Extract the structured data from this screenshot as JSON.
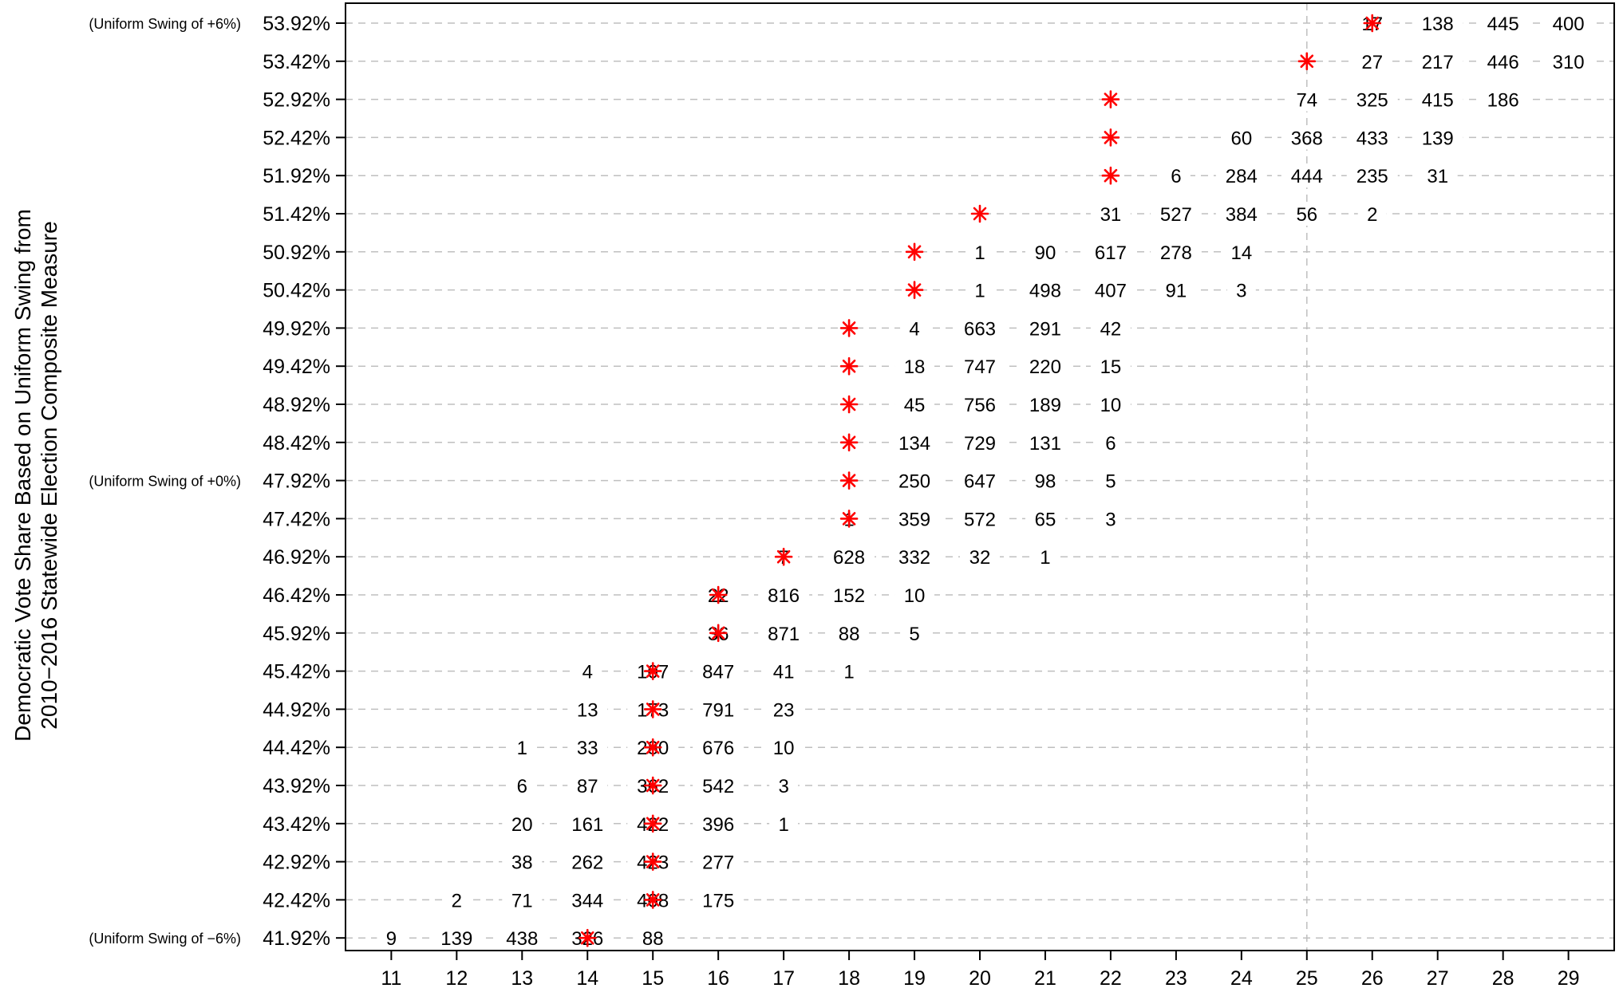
{
  "chart_data": {
    "type": "table",
    "title": "",
    "ylabel_lines": [
      "Democratic Vote Share Based on Uniform Swing from",
      "2010−2016 Statewide Election Composite Measure"
    ],
    "xlabel": "",
    "x_ticks": [
      11,
      12,
      13,
      14,
      15,
      16,
      17,
      18,
      19,
      20,
      21,
      22,
      23,
      24,
      25,
      26,
      27,
      28,
      29
    ],
    "xlim": [
      10.3,
      29.7
    ],
    "vertical_line_x": 25,
    "grid": "horizontal dashed",
    "marker_color": "#ff0000",
    "marker_color_black": "#000000",
    "rows": [
      {
        "label": "53.92%",
        "note": "(Uniform Swing of +6%)",
        "marker": 26,
        "marker_color": "red",
        "cells": [
          {
            "x": 26,
            "n": "17"
          },
          {
            "x": 27,
            "n": "138"
          },
          {
            "x": 28,
            "n": "445"
          },
          {
            "x": 29,
            "n": "400"
          }
        ]
      },
      {
        "label": "53.42%",
        "note": "",
        "marker": 25,
        "marker_color": "red",
        "cells": [
          {
            "x": 26,
            "n": "27"
          },
          {
            "x": 27,
            "n": "217"
          },
          {
            "x": 28,
            "n": "446"
          },
          {
            "x": 29,
            "n": "310"
          }
        ]
      },
      {
        "label": "52.92%",
        "note": "",
        "marker": 22,
        "marker_color": "red",
        "cells": [
          {
            "x": 25,
            "n": "74"
          },
          {
            "x": 26,
            "n": "325"
          },
          {
            "x": 27,
            "n": "415"
          },
          {
            "x": 28,
            "n": "186"
          }
        ]
      },
      {
        "label": "52.42%",
        "note": "",
        "marker": 22,
        "marker_color": "red",
        "cells": [
          {
            "x": 24,
            "n": "60"
          },
          {
            "x": 25,
            "n": "368"
          },
          {
            "x": 26,
            "n": "433"
          },
          {
            "x": 27,
            "n": "139"
          }
        ]
      },
      {
        "label": "51.92%",
        "note": "",
        "marker": 22,
        "marker_color": "red",
        "cells": [
          {
            "x": 23,
            "n": "6"
          },
          {
            "x": 24,
            "n": "284"
          },
          {
            "x": 25,
            "n": "444"
          },
          {
            "x": 26,
            "n": "235"
          },
          {
            "x": 27,
            "n": "31"
          }
        ]
      },
      {
        "label": "51.42%",
        "note": "",
        "marker": 20,
        "marker_color": "red",
        "cells": [
          {
            "x": 22,
            "n": "31"
          },
          {
            "x": 23,
            "n": "527"
          },
          {
            "x": 24,
            "n": "384"
          },
          {
            "x": 25,
            "n": "56"
          },
          {
            "x": 26,
            "n": "2"
          }
        ]
      },
      {
        "label": "50.92%",
        "note": "",
        "marker": 19,
        "marker_color": "red",
        "cells": [
          {
            "x": 20,
            "n": "1"
          },
          {
            "x": 21,
            "n": "90"
          },
          {
            "x": 22,
            "n": "617"
          },
          {
            "x": 23,
            "n": "278"
          },
          {
            "x": 24,
            "n": "14"
          }
        ]
      },
      {
        "label": "50.42%",
        "note": "",
        "marker": 19,
        "marker_color": "red",
        "cells": [
          {
            "x": 20,
            "n": "1"
          },
          {
            "x": 21,
            "n": "498"
          },
          {
            "x": 22,
            "n": "407"
          },
          {
            "x": 23,
            "n": "91"
          },
          {
            "x": 24,
            "n": "3"
          }
        ]
      },
      {
        "label": "49.92%",
        "note": "",
        "marker": 18,
        "marker_color": "red",
        "cells": [
          {
            "x": 19,
            "n": "4"
          },
          {
            "x": 20,
            "n": "663"
          },
          {
            "x": 21,
            "n": "291"
          },
          {
            "x": 22,
            "n": "42"
          }
        ]
      },
      {
        "label": "49.42%",
        "note": "",
        "marker": 18,
        "marker_color": "red",
        "cells": [
          {
            "x": 19,
            "n": "18"
          },
          {
            "x": 20,
            "n": "747"
          },
          {
            "x": 21,
            "n": "220"
          },
          {
            "x": 22,
            "n": "15"
          }
        ]
      },
      {
        "label": "48.92%",
        "note": "",
        "marker": 18,
        "marker_color": "red",
        "cells": [
          {
            "x": 19,
            "n": "45"
          },
          {
            "x": 20,
            "n": "756"
          },
          {
            "x": 21,
            "n": "189"
          },
          {
            "x": 22,
            "n": "10"
          }
        ]
      },
      {
        "label": "48.42%",
        "note": "",
        "marker": 18,
        "marker_color": "red",
        "cells": [
          {
            "x": 19,
            "n": "134"
          },
          {
            "x": 20,
            "n": "729"
          },
          {
            "x": 21,
            "n": "131"
          },
          {
            "x": 22,
            "n": "6"
          }
        ]
      },
      {
        "label": "47.92%",
        "note": "(Uniform Swing of +0%)",
        "marker": 18,
        "marker_color": "red",
        "cells": [
          {
            "x": 19,
            "n": "250"
          },
          {
            "x": 20,
            "n": "647"
          },
          {
            "x": 21,
            "n": "98"
          },
          {
            "x": 22,
            "n": "5"
          }
        ]
      },
      {
        "label": "47.42%",
        "note": "",
        "marker": 18,
        "marker_color": "red",
        "cells": [
          {
            "x": 18,
            "n": "1"
          },
          {
            "x": 19,
            "n": "359"
          },
          {
            "x": 20,
            "n": "572"
          },
          {
            "x": 21,
            "n": "65"
          },
          {
            "x": 22,
            "n": "3"
          }
        ]
      },
      {
        "label": "46.92%",
        "note": "",
        "marker": 17,
        "marker_color": "red",
        "cells": [
          {
            "x": 17,
            "n": "7"
          },
          {
            "x": 18,
            "n": "628"
          },
          {
            "x": 19,
            "n": "332"
          },
          {
            "x": 20,
            "n": "32"
          },
          {
            "x": 21,
            "n": "1"
          }
        ]
      },
      {
        "label": "46.42%",
        "note": "",
        "marker": 16,
        "marker_color": "red",
        "cells": [
          {
            "x": 16,
            "n": "22"
          },
          {
            "x": 17,
            "n": "816"
          },
          {
            "x": 18,
            "n": "152"
          },
          {
            "x": 19,
            "n": "10"
          }
        ]
      },
      {
        "label": "45.92%",
        "note": "",
        "marker": 16,
        "marker_color": "red",
        "cells": [
          {
            "x": 16,
            "n": "36"
          },
          {
            "x": 17,
            "n": "871"
          },
          {
            "x": 18,
            "n": "88"
          },
          {
            "x": 19,
            "n": "5"
          }
        ]
      },
      {
        "label": "45.42%",
        "note": "",
        "marker": 15,
        "marker_color": "red",
        "cells": [
          {
            "x": 14,
            "n": "4"
          },
          {
            "x": 15,
            "n": "107"
          },
          {
            "x": 16,
            "n": "847"
          },
          {
            "x": 17,
            "n": "41"
          },
          {
            "x": 18,
            "n": "1"
          }
        ]
      },
      {
        "label": "44.92%",
        "note": "",
        "marker": 15,
        "marker_color": "red",
        "cells": [
          {
            "x": 14,
            "n": "13"
          },
          {
            "x": 15,
            "n": "173"
          },
          {
            "x": 16,
            "n": "791"
          },
          {
            "x": 17,
            "n": "23"
          }
        ]
      },
      {
        "label": "44.42%",
        "note": "",
        "marker": 15,
        "marker_color": "red",
        "cells": [
          {
            "x": 13,
            "n": "1"
          },
          {
            "x": 14,
            "n": "33"
          },
          {
            "x": 15,
            "n": "280"
          },
          {
            "x": 16,
            "n": "676"
          },
          {
            "x": 17,
            "n": "10"
          }
        ]
      },
      {
        "label": "43.92%",
        "note": "",
        "marker": 15,
        "marker_color": "red",
        "cells": [
          {
            "x": 13,
            "n": "6"
          },
          {
            "x": 14,
            "n": "87"
          },
          {
            "x": 15,
            "n": "362"
          },
          {
            "x": 16,
            "n": "542"
          },
          {
            "x": 17,
            "n": "3"
          }
        ]
      },
      {
        "label": "43.42%",
        "note": "",
        "marker": 15,
        "marker_color": "red",
        "cells": [
          {
            "x": 13,
            "n": "20"
          },
          {
            "x": 14,
            "n": "161"
          },
          {
            "x": 15,
            "n": "422"
          },
          {
            "x": 16,
            "n": "396"
          },
          {
            "x": 17,
            "n": "1"
          }
        ]
      },
      {
        "label": "42.92%",
        "note": "",
        "marker": 15,
        "marker_color": "red",
        "cells": [
          {
            "x": 13,
            "n": "38"
          },
          {
            "x": 14,
            "n": "262"
          },
          {
            "x": 15,
            "n": "423"
          },
          {
            "x": 16,
            "n": "277"
          }
        ]
      },
      {
        "label": "42.42%",
        "note": "",
        "marker": 15,
        "marker_color": "red",
        "cells": [
          {
            "x": 12,
            "n": "2"
          },
          {
            "x": 13,
            "n": "71"
          },
          {
            "x": 14,
            "n": "344"
          },
          {
            "x": 15,
            "n": "408"
          },
          {
            "x": 16,
            "n": "175"
          }
        ]
      },
      {
        "label": "41.92%",
        "note": "(Uniform Swing of −6%)",
        "marker": 14,
        "marker_color": "red",
        "cells": [
          {
            "x": 11,
            "n": "9"
          },
          {
            "x": 12,
            "n": "139"
          },
          {
            "x": 13,
            "n": "438"
          },
          {
            "x": 14,
            "n": "326"
          },
          {
            "x": 15,
            "n": "88"
          }
        ]
      }
    ]
  }
}
